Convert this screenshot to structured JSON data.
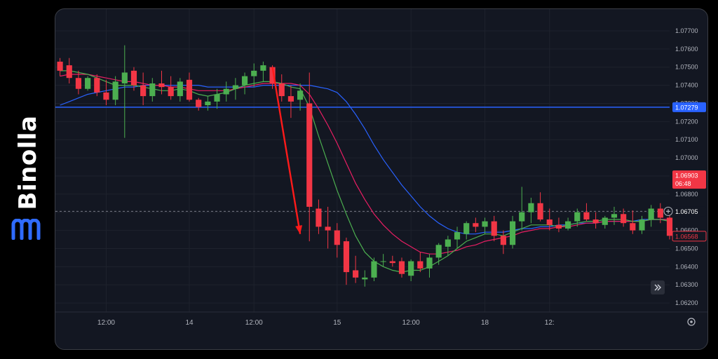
{
  "brand": {
    "name": "Binolla",
    "logo_icon": "binolla-logo-icon",
    "logo_color": "#2f6bff"
  },
  "colors": {
    "background": "#131722",
    "grid": "#1e222d",
    "up": "#26a69a",
    "up_fill": "#4caf50",
    "down": "#f23645",
    "ma_fast": "#4caf50",
    "ma_mid": "#e91e63",
    "ma_slow": "#2962ff",
    "level_line": "#2962ff",
    "arrow": "#ff1a1a",
    "axis_text": "#b2b5be"
  },
  "chart_data": {
    "type": "candlestick",
    "title": "",
    "xlabel": "",
    "ylabel": "",
    "ylim": [
      1.0615,
      1.0775
    ],
    "y_ticks": [
      "1.07700",
      "1.07600",
      "1.07500",
      "1.07400",
      "1.07300",
      "1.07200",
      "1.07100",
      "1.07000",
      "1.06900",
      "1.06800",
      "1.06700",
      "1.06600",
      "1.06500",
      "1.06400",
      "1.06300",
      "1.06200"
    ],
    "x_ticks": [
      {
        "label": "12:00",
        "index": 5
      },
      {
        "label": "14",
        "index": 14
      },
      {
        "label": "12:00",
        "index": 21
      },
      {
        "label": "15",
        "index": 30
      },
      {
        "label": "12:00",
        "index": 38
      },
      {
        "label": "18",
        "index": 46
      },
      {
        "label": "12:",
        "index": 53
      }
    ],
    "grid": true,
    "candles": [
      [
        1.0753,
        1.0755,
        1.0745,
        1.0748
      ],
      [
        1.0751,
        1.0755,
        1.0741,
        1.0744
      ],
      [
        1.0744,
        1.0748,
        1.0735,
        1.0738
      ],
      [
        1.0738,
        1.0745,
        1.0737,
        1.0744
      ],
      [
        1.0744,
        1.0746,
        1.0734,
        1.0736
      ],
      [
        1.0736,
        1.0743,
        1.0729,
        1.0732
      ],
      [
        1.0732,
        1.0745,
        1.0729,
        1.0742
      ],
      [
        1.0741,
        1.0762,
        1.0711,
        1.0747
      ],
      [
        1.0748,
        1.075,
        1.0737,
        1.074
      ],
      [
        1.074,
        1.0747,
        1.0729,
        1.0734
      ],
      [
        1.0734,
        1.0744,
        1.0731,
        1.0741
      ],
      [
        1.0741,
        1.0748,
        1.0735,
        1.0739
      ],
      [
        1.0739,
        1.0745,
        1.0732,
        1.0734
      ],
      [
        1.0734,
        1.0744,
        1.0731,
        1.0742
      ],
      [
        1.0743,
        1.0747,
        1.0731,
        1.0732
      ],
      [
        1.0732,
        1.0733,
        1.0726,
        1.0728
      ],
      [
        1.0729,
        1.0734,
        1.0726,
        1.0731
      ],
      [
        1.0731,
        1.0738,
        1.0727,
        1.0735
      ],
      [
        1.0735,
        1.0742,
        1.0731,
        1.0738
      ],
      [
        1.0738,
        1.0744,
        1.0732,
        1.074
      ],
      [
        1.074,
        1.0747,
        1.0735,
        1.0745
      ],
      [
        1.0745,
        1.0752,
        1.0739,
        1.0748
      ],
      [
        1.0748,
        1.0753,
        1.0742,
        1.0751
      ],
      [
        1.075,
        1.0751,
        1.0738,
        1.0741
      ],
      [
        1.0741,
        1.0746,
        1.0731,
        1.0734
      ],
      [
        1.0734,
        1.074,
        1.0722,
        1.0731
      ],
      [
        1.0732,
        1.0741,
        1.0726,
        1.0737
      ],
      [
        1.073,
        1.0747,
        1.0654,
        1.0673
      ],
      [
        1.0672,
        1.0677,
        1.0658,
        1.0662
      ],
      [
        1.0662,
        1.0673,
        1.065,
        1.066
      ],
      [
        1.066,
        1.0664,
        1.0645,
        1.0652
      ],
      [
        1.0654,
        1.0656,
        1.063,
        1.0637
      ],
      [
        1.0638,
        1.0646,
        1.0631,
        1.0634
      ],
      [
        1.0633,
        1.0638,
        1.0629,
        1.0634
      ],
      [
        1.0634,
        1.0645,
        1.0632,
        1.0643
      ],
      [
        1.0643,
        1.0647,
        1.064,
        1.0643
      ],
      [
        1.0643,
        1.0646,
        1.064,
        1.0642
      ],
      [
        1.0643,
        1.0645,
        1.0634,
        1.0636
      ],
      [
        1.0635,
        1.0644,
        1.0632,
        1.0643
      ],
      [
        1.0643,
        1.0648,
        1.0637,
        1.0639
      ],
      [
        1.0639,
        1.0647,
        1.0634,
        1.0645
      ],
      [
        1.0645,
        1.0653,
        1.0641,
        1.0652
      ],
      [
        1.0651,
        1.0657,
        1.0646,
        1.0655
      ],
      [
        1.0655,
        1.0662,
        1.065,
        1.0659
      ],
      [
        1.0658,
        1.0665,
        1.0655,
        1.0664
      ],
      [
        1.0664,
        1.0667,
        1.0659,
        1.0662
      ],
      [
        1.0662,
        1.0667,
        1.0658,
        1.0665
      ],
      [
        1.0665,
        1.0668,
        1.0654,
        1.0657
      ],
      [
        1.0657,
        1.066,
        1.0647,
        1.0652
      ],
      [
        1.0652,
        1.0668,
        1.065,
        1.0665
      ],
      [
        1.0665,
        1.0684,
        1.066,
        1.067
      ],
      [
        1.067,
        1.0678,
        1.0664,
        1.0675
      ],
      [
        1.0675,
        1.0681,
        1.0665,
        1.0666
      ],
      [
        1.0666,
        1.0672,
        1.066,
        1.0663
      ],
      [
        1.0663,
        1.0667,
        1.0659,
        1.0661
      ],
      [
        1.0661,
        1.0667,
        1.066,
        1.0665
      ],
      [
        1.0665,
        1.0672,
        1.0662,
        1.067
      ],
      [
        1.067,
        1.0675,
        1.0665,
        1.0666
      ],
      [
        1.0666,
        1.067,
        1.0661,
        1.0664
      ],
      [
        1.0663,
        1.0668,
        1.0661,
        1.0667
      ],
      [
        1.0667,
        1.0673,
        1.0663,
        1.0669
      ],
      [
        1.0669,
        1.0672,
        1.0662,
        1.0664
      ],
      [
        1.0664,
        1.0671,
        1.0658,
        1.066
      ],
      [
        1.066,
        1.0668,
        1.0658,
        1.0666
      ],
      [
        1.0666,
        1.0674,
        1.0662,
        1.0672
      ],
      [
        1.0672,
        1.0675,
        1.0664,
        1.0667
      ],
      [
        1.0667,
        1.067,
        1.0655,
        1.0657
      ]
    ],
    "ma_fast": [
      1.0748,
      1.0748,
      1.0747,
      1.0746,
      1.0744,
      1.0742,
      1.074,
      1.074,
      1.074,
      1.0739,
      1.0738,
      1.0737,
      1.0737,
      1.0738,
      1.0737,
      1.0735,
      1.0734,
      1.0735,
      1.0736,
      1.0738,
      1.074,
      1.0741,
      1.0742,
      1.0742,
      1.0741,
      1.0739,
      1.0738,
      1.0728,
      1.0712,
      1.0697,
      1.0682,
      1.0669,
      1.0657,
      1.0648,
      1.0643,
      1.064,
      1.0638,
      1.0637,
      1.0638,
      1.0638,
      1.064,
      1.0643,
      1.0646,
      1.065,
      1.0654,
      1.0656,
      1.0658,
      1.0658,
      1.0657,
      1.0659,
      1.0661,
      1.0663,
      1.0663,
      1.0663,
      1.0662,
      1.0663,
      1.0664,
      1.0665,
      1.0665,
      1.0666,
      1.0666,
      1.0666,
      1.0665,
      1.0665,
      1.0666,
      1.0666,
      1.0665
    ],
    "ma_mid": [
      1.0745,
      1.0746,
      1.0746,
      1.0746,
      1.0745,
      1.0744,
      1.0743,
      1.0742,
      1.0742,
      1.0741,
      1.074,
      1.074,
      1.0739,
      1.0739,
      1.0738,
      1.0737,
      1.0737,
      1.0737,
      1.0737,
      1.0738,
      1.0739,
      1.074,
      1.0741,
      1.0741,
      1.0741,
      1.0741,
      1.074,
      1.0735,
      1.0727,
      1.0718,
      1.0708,
      1.0697,
      1.0686,
      1.0677,
      1.0669,
      1.0663,
      1.0658,
      1.0654,
      1.0651,
      1.0648,
      1.0647,
      1.0647,
      1.0648,
      1.0649,
      1.0651,
      1.0652,
      1.0654,
      1.0655,
      1.0656,
      1.0657,
      1.0659,
      1.066,
      1.0661,
      1.0661,
      1.0662,
      1.0662,
      1.0663,
      1.0664,
      1.0664,
      1.0665,
      1.0665,
      1.0665,
      1.0665,
      1.0665,
      1.0666,
      1.0666,
      1.0666
    ],
    "ma_slow": [
      1.0729,
      1.0731,
      1.0733,
      1.0735,
      1.0736,
      1.0737,
      1.0738,
      1.0739,
      1.0739,
      1.074,
      1.074,
      1.074,
      1.074,
      1.074,
      1.074,
      1.074,
      1.0739,
      1.0739,
      1.0739,
      1.0739,
      1.0739,
      1.0739,
      1.074,
      1.074,
      1.074,
      1.074,
      1.074,
      1.074,
      1.0739,
      1.0738,
      1.0736,
      1.0731,
      1.0724,
      1.0716,
      1.0707,
      1.0699,
      1.0692,
      1.0685,
      1.0679,
      1.0673,
      1.0668,
      1.0664,
      1.0661,
      1.0659,
      1.0658,
      1.0658,
      1.0659,
      1.0659,
      1.0659,
      1.066,
      1.0661,
      1.0661,
      1.0662,
      1.0662,
      1.0663,
      1.0663,
      1.0664,
      1.0664,
      1.0664,
      1.0665,
      1.0665,
      1.0665,
      1.0665,
      1.0666,
      1.0666,
      1.0666,
      1.0666
    ],
    "level_line": {
      "value": 1.07279,
      "label": "1.07279"
    },
    "price_tags": [
      {
        "value": 1.06903,
        "label": "1.06903",
        "sublabel": "06:48"
      },
      {
        "value": 1.06705,
        "label": "1.06705"
      },
      {
        "value": 1.06568,
        "label": "1.06568"
      }
    ],
    "annotation": {
      "type": "arrow",
      "from": [
        23,
        1.075
      ],
      "to": [
        26,
        1.0658
      ]
    }
  },
  "controls": {
    "plus_icon": "plus-circle-icon",
    "scroll_icon": "double-chevron-right-icon",
    "settings_icon": "gear-icon"
  }
}
